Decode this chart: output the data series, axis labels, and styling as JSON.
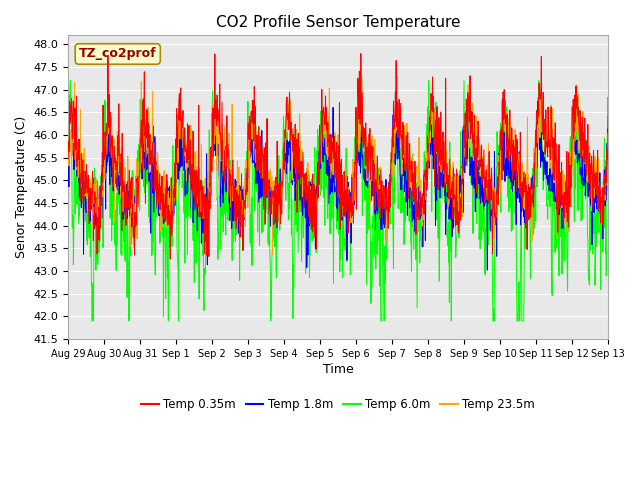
{
  "title": "CO2 Profile Sensor Temperature",
  "xlabel": "Time",
  "ylabel": "Senor Temperature (C)",
  "ylim": [
    41.5,
    48.2
  ],
  "bg_color": "#e8e8e8",
  "fig_color": "#ffffff",
  "grid_color": "white",
  "legend_labels": [
    "Temp 0.35m",
    "Temp 1.8m",
    "Temp 6.0m",
    "Temp 23.5m"
  ],
  "legend_colors": [
    "red",
    "blue",
    "lime",
    "orange"
  ],
  "annotation_text": "TZ_co2prof",
  "annotation_color": "#990000",
  "annotation_bg": "#ffffcc",
  "annotation_border": "#aa8800",
  "yticks": [
    41.5,
    42.0,
    42.5,
    43.0,
    43.5,
    44.0,
    44.5,
    45.0,
    45.5,
    46.0,
    46.5,
    47.0,
    47.5,
    48.0
  ],
  "xtick_labels": [
    "Aug 29",
    "Aug 30",
    "Aug 31",
    "Sep 1",
    "Sep 2",
    "Sep 3",
    "Sep 4",
    "Sep 5",
    "Sep 6",
    "Sep 7",
    "Sep 8",
    "Sep 9",
    "Sep 10",
    "Sep 11",
    "Sep 12",
    "Sep 13"
  ],
  "xtick_positions": [
    0,
    1,
    2,
    3,
    4,
    5,
    6,
    7,
    8,
    9,
    10,
    11,
    12,
    13,
    14,
    15
  ]
}
